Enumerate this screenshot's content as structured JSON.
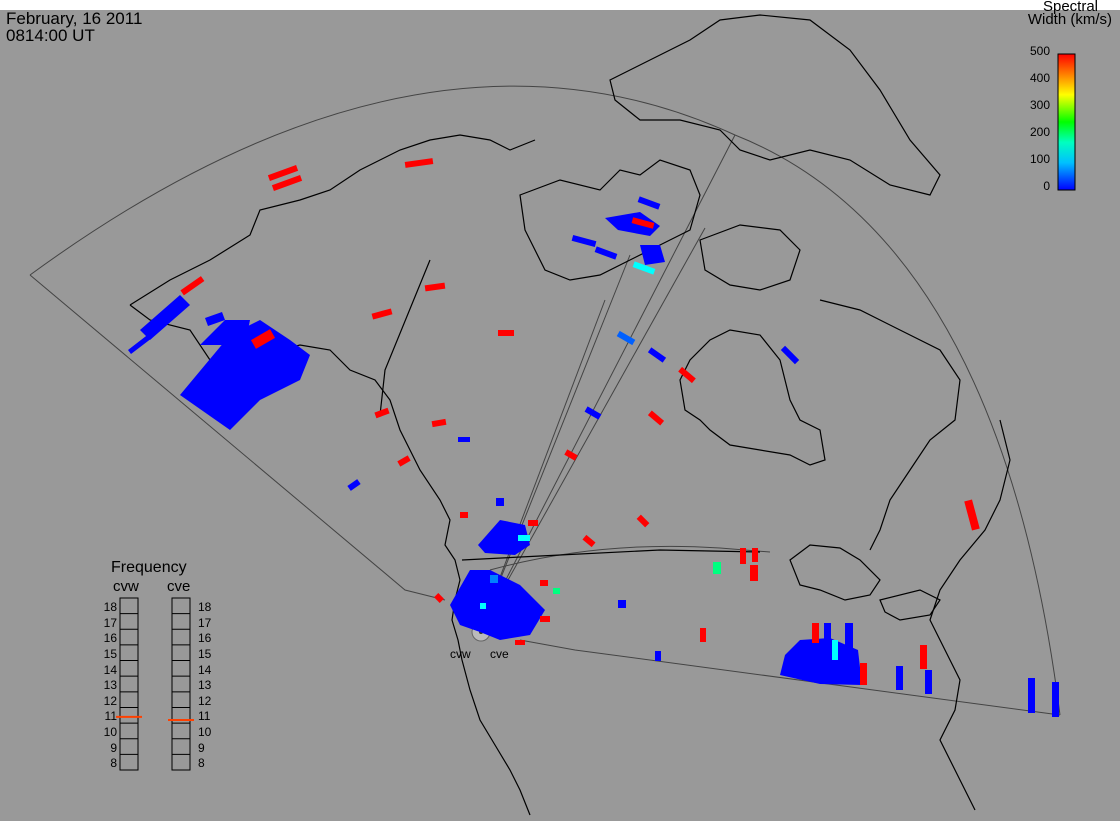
{
  "header": {
    "date": "February, 16 2011",
    "time": "0814:00 UT"
  },
  "colorbar": {
    "title_line1": "Spectral",
    "title_line2": "Width (km/s)",
    "ticks": [
      "500",
      "400",
      "300",
      "200",
      "100",
      "0"
    ],
    "range": [
      0,
      500
    ],
    "colors": [
      "#ff0000",
      "#ff8000",
      "#ffff00",
      "#00ff00",
      "#00ffff",
      "#0000ff"
    ]
  },
  "frequency_panel": {
    "title": "Frequency",
    "radar_left": "cvw",
    "radar_right": "cve",
    "levels": [
      "18",
      "17",
      "16",
      "15",
      "14",
      "13",
      "12",
      "11",
      "10",
      "9",
      "8"
    ],
    "cvw_value": 10.9,
    "cve_value": 10.7,
    "marker_color": "#ff4000"
  },
  "sites": {
    "west": "cvw",
    "east": "cve"
  },
  "colors": {
    "background": "#999999",
    "outside": "#ffffff",
    "coast": "#000000",
    "blue": "#0000ff",
    "red": "#ff0000",
    "cyan": "#00ffff",
    "green": "#00ff80"
  }
}
